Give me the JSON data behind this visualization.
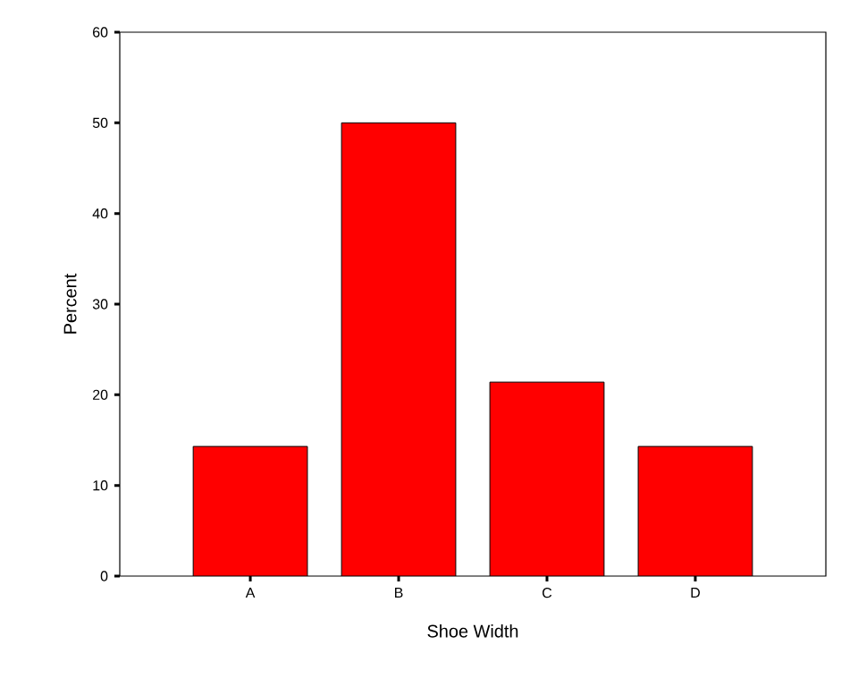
{
  "chart_data": {
    "type": "bar",
    "xlabel": "Shoe Width",
    "ylabel": "Percent",
    "categories": [
      "A",
      "B",
      "C",
      "D"
    ],
    "values": [
      14.3,
      50,
      21.4,
      14.3
    ],
    "color": "#ff0000",
    "ylim": [
      0,
      60
    ],
    "yticks": [
      0,
      10,
      20,
      30,
      40,
      50,
      60
    ],
    "grid": false
  }
}
